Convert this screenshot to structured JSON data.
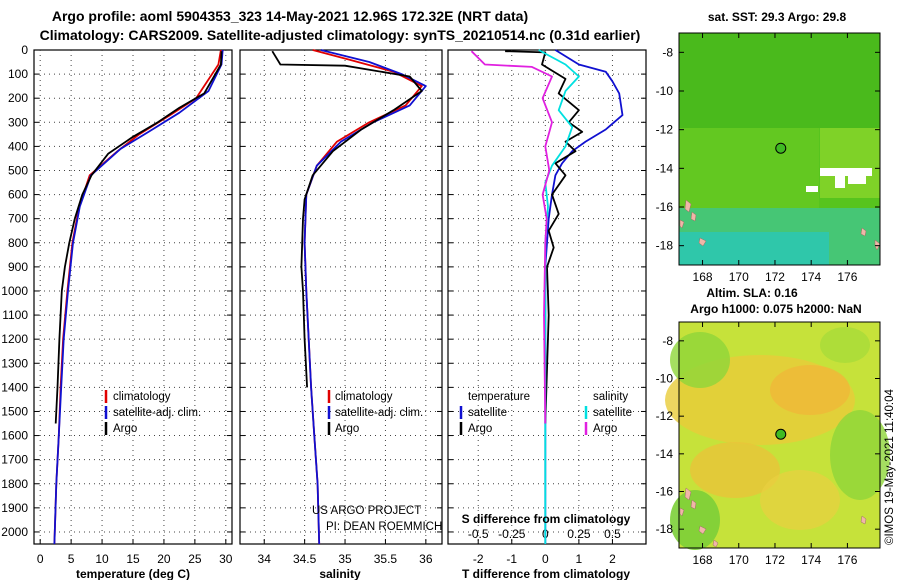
{
  "titles": {
    "line1": "Argo profile: aoml 5904353_323 14-May-2021 12.96S 172.32E (NRT data)",
    "line2": "Climatology: CARS2009. Satellite-adjusted climatology: synTS_20210514.nc (0.31d earlier)"
  },
  "depth_axis": {
    "range": [
      0,
      2050
    ],
    "ticks": [
      0,
      100,
      200,
      300,
      400,
      500,
      600,
      700,
      800,
      900,
      1000,
      1100,
      1200,
      1300,
      1400,
      1500,
      1600,
      1700,
      1800,
      1900,
      2000
    ]
  },
  "colors": {
    "climatology": "#e00000",
    "satellite": "#1010d0",
    "argo": "#000000",
    "sal_satellite": "#00e0e0",
    "sal_argo": "#e020e0"
  },
  "chart_data": [
    {
      "type": "line",
      "id": "temperature",
      "xlabel": "temperature (deg C)",
      "xlim": [
        -1,
        31
      ],
      "xticks": [
        0,
        5,
        10,
        15,
        20,
        25,
        30
      ],
      "ylabel": "depth",
      "legend": [
        "climatology",
        "satellite-adj. clim.",
        "Argo"
      ],
      "series": [
        {
          "name": "climatology",
          "color": "#e00000",
          "x": [
            29.2,
            28.8,
            25.2,
            21.0,
            16.0,
            12.5,
            8.0,
            6.3,
            5.2,
            4.4,
            3.7,
            3.3,
            3.0,
            2.6,
            2.3
          ],
          "y": [
            0,
            60,
            200,
            270,
            350,
            420,
            520,
            650,
            800,
            1000,
            1200,
            1400,
            1600,
            1800,
            2050
          ]
        },
        {
          "name": "satellite-adj. clim.",
          "color": "#1010d0",
          "x": [
            29.5,
            29.3,
            27.2,
            22.5,
            17.5,
            13.0,
            8.2,
            6.4,
            5.3,
            4.5,
            3.8,
            3.4,
            3.0,
            2.6,
            2.3
          ],
          "y": [
            0,
            60,
            170,
            260,
            340,
            410,
            520,
            650,
            800,
            1000,
            1200,
            1400,
            1600,
            1800,
            2050
          ]
        },
        {
          "name": "Argo",
          "color": "#000000",
          "x": [
            29.3,
            29.2,
            26.5,
            22.5,
            19.0,
            15.0,
            11.0,
            8.3,
            6.8,
            5.6,
            4.7,
            4.0,
            3.5,
            3.1,
            2.8,
            2.5
          ],
          "y": [
            5,
            60,
            180,
            240,
            300,
            360,
            430,
            520,
            600,
            700,
            800,
            900,
            1000,
            1200,
            1400,
            1550
          ]
        }
      ]
    },
    {
      "type": "line",
      "id": "salinity",
      "xlabel": "salinity",
      "xlim": [
        33.7,
        36.2
      ],
      "xticks": [
        34,
        34.5,
        35,
        35.5,
        36
      ],
      "legend": [
        "climatology",
        "satellite-adj. clim.",
        "Argo"
      ],
      "series": [
        {
          "name": "climatology",
          "color": "#e00000",
          "x": [
            34.6,
            35.05,
            35.6,
            35.95,
            35.75,
            35.3,
            34.9,
            34.65,
            34.52,
            34.5,
            34.52,
            34.55,
            34.58,
            34.62,
            34.66,
            34.68
          ],
          "y": [
            0,
            40,
            90,
            150,
            230,
            300,
            380,
            480,
            600,
            800,
            1000,
            1200,
            1400,
            1600,
            1800,
            2050
          ]
        },
        {
          "name": "satellite-adj. clim.",
          "color": "#1010d0",
          "x": [
            34.7,
            35.3,
            35.7,
            36.0,
            35.8,
            35.35,
            34.95,
            34.65,
            34.52,
            34.5,
            34.52,
            34.55,
            34.58,
            34.62,
            34.66,
            34.68
          ],
          "y": [
            0,
            50,
            100,
            150,
            230,
            300,
            380,
            480,
            600,
            800,
            1000,
            1200,
            1400,
            1600,
            1800,
            2050
          ]
        },
        {
          "name": "Argo",
          "color": "#000000",
          "x": [
            34.1,
            34.2,
            35.0,
            35.8,
            35.95,
            35.6,
            35.2,
            34.85,
            34.6,
            34.5,
            34.48,
            34.47,
            34.46,
            34.48,
            34.5,
            34.53
          ],
          "y": [
            5,
            60,
            65,
            110,
            170,
            250,
            330,
            420,
            520,
            620,
            700,
            800,
            900,
            1000,
            1200,
            1400
          ]
        }
      ],
      "annotation_lines": [
        "US ARGO PROJECT",
        "PI: DEAN ROEMMICH"
      ]
    },
    {
      "type": "line",
      "id": "difference",
      "xlabel": "T difference from climatology",
      "xlim": [
        -2.9,
        3.0
      ],
      "xticks": [
        -2,
        -1,
        0,
        1,
        2
      ],
      "top_axis_label": "S difference from climatology",
      "top_xticks": [
        "-0.5",
        "-0.25",
        "0",
        "0.25",
        "0.5"
      ],
      "legend_left_title": "temperature",
      "legend_right_title": "salinity",
      "legend_left": [
        "satellite",
        "Argo"
      ],
      "legend_right": [
        "satellite",
        "Argo"
      ],
      "series": [
        {
          "name": "T satellite",
          "color": "#1010d0",
          "x": [
            0.3,
            1.0,
            1.8,
            2.0,
            2.2,
            2.3,
            1.8,
            1.2,
            0.8,
            0.5,
            0.3,
            0.2,
            0.1,
            0.05,
            0.0,
            0.0,
            0.0,
            0.0
          ],
          "y": [
            0,
            60,
            90,
            130,
            180,
            270,
            330,
            380,
            420,
            470,
            520,
            600,
            700,
            800,
            900,
            1000,
            1500,
            2050
          ]
        },
        {
          "name": "T Argo",
          "color": "#000000",
          "x": [
            -1.2,
            0.0,
            -0.1,
            0.6,
            0.4,
            1.0,
            0.7,
            1.1,
            0.6,
            0.9,
            0.3,
            0.6,
            0.2,
            0.4,
            0.1,
            0.25,
            0.05,
            0.1,
            0.0
          ],
          "y": [
            5,
            10,
            60,
            120,
            180,
            250,
            300,
            340,
            380,
            420,
            470,
            520,
            600,
            680,
            750,
            820,
            900,
            1100,
            1550
          ]
        },
        {
          "name": "S satellite",
          "color": "#00e0e0",
          "x": [
            -0.05,
            0.15,
            0.25,
            0.15,
            0.1,
            0.2,
            0.15,
            0.05,
            0.0,
            0.02,
            0.0,
            0.0,
            0.0
          ],
          "y": [
            0,
            60,
            110,
            170,
            250,
            320,
            400,
            480,
            550,
            650,
            800,
            1100,
            2050
          ]
        },
        {
          "name": "S Argo",
          "color": "#e020e0",
          "x": [
            -0.55,
            -0.45,
            -0.1,
            0.05,
            -0.02,
            0.05,
            0.0,
            0.03,
            -0.02,
            0.01,
            0.0,
            -0.01,
            0.0
          ],
          "y": [
            5,
            60,
            70,
            110,
            200,
            300,
            400,
            500,
            600,
            700,
            800,
            1100,
            1550
          ]
        }
      ]
    },
    {
      "type": "heatmap",
      "id": "sst-map",
      "title": "sat. SST: 29.3 Argo: 29.8",
      "xticks": [
        168,
        170,
        172,
        174,
        176
      ],
      "yticks": [
        -8,
        -10,
        -12,
        -14,
        -16,
        -18
      ],
      "xlim": [
        166.7,
        177.8
      ],
      "ylim": [
        -19.0,
        -7.0
      ],
      "profile_location": {
        "lon": 172.32,
        "lat": -12.96
      }
    },
    {
      "type": "heatmap",
      "id": "sla-map",
      "title": "Altim. SLA: 0.16",
      "subtitle": "Argo h1000: 0.075 h2000: NaN",
      "xticks": [
        168,
        170,
        172,
        174,
        176
      ],
      "yticks": [
        -8,
        -10,
        -12,
        -14,
        -16,
        -18
      ],
      "xlim": [
        166.7,
        177.8
      ],
      "ylim": [
        -19.0,
        -7.0
      ],
      "profile_location": {
        "lon": 172.32,
        "lat": -12.96
      }
    }
  ],
  "credit": "©IMOS 19-May-2021 11:40:04"
}
